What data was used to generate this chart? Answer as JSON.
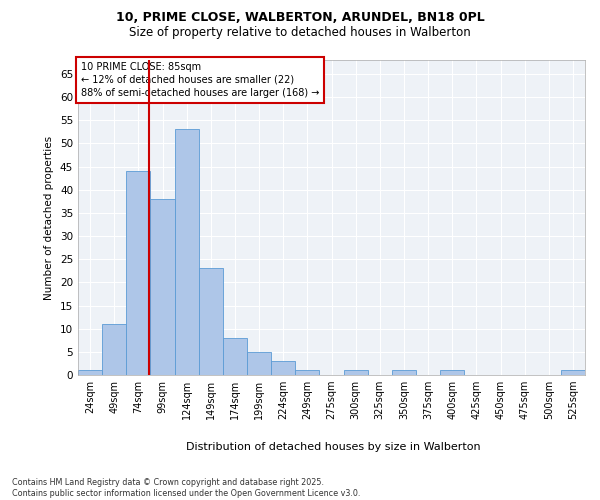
{
  "title_line1": "10, PRIME CLOSE, WALBERTON, ARUNDEL, BN18 0PL",
  "title_line2": "Size of property relative to detached houses in Walberton",
  "xlabel": "Distribution of detached houses by size in Walberton",
  "ylabel": "Number of detached properties",
  "categories": [
    "24sqm",
    "49sqm",
    "74sqm",
    "99sqm",
    "124sqm",
    "149sqm",
    "174sqm",
    "199sqm",
    "224sqm",
    "249sqm",
    "275sqm",
    "300sqm",
    "325sqm",
    "350sqm",
    "375sqm",
    "400sqm",
    "425sqm",
    "450sqm",
    "475sqm",
    "500sqm",
    "525sqm"
  ],
  "values": [
    1,
    11,
    44,
    38,
    53,
    23,
    8,
    5,
    3,
    1,
    0,
    1,
    0,
    1,
    0,
    1,
    0,
    0,
    0,
    0,
    1
  ],
  "bar_color": "#aec6e8",
  "bar_edge_color": "#5b9bd5",
  "ylim": [
    0,
    68
  ],
  "yticks": [
    0,
    5,
    10,
    15,
    20,
    25,
    30,
    35,
    40,
    45,
    50,
    55,
    60,
    65
  ],
  "vline_color": "#cc0000",
  "annotation_box_text": "10 PRIME CLOSE: 85sqm\n← 12% of detached houses are smaller (22)\n88% of semi-detached houses are larger (168) →",
  "annotation_box_color": "#cc0000",
  "footnote": "Contains HM Land Registry data © Crown copyright and database right 2025.\nContains public sector information licensed under the Open Government Licence v3.0.",
  "bg_color": "#eef2f7",
  "grid_color": "#ffffff"
}
